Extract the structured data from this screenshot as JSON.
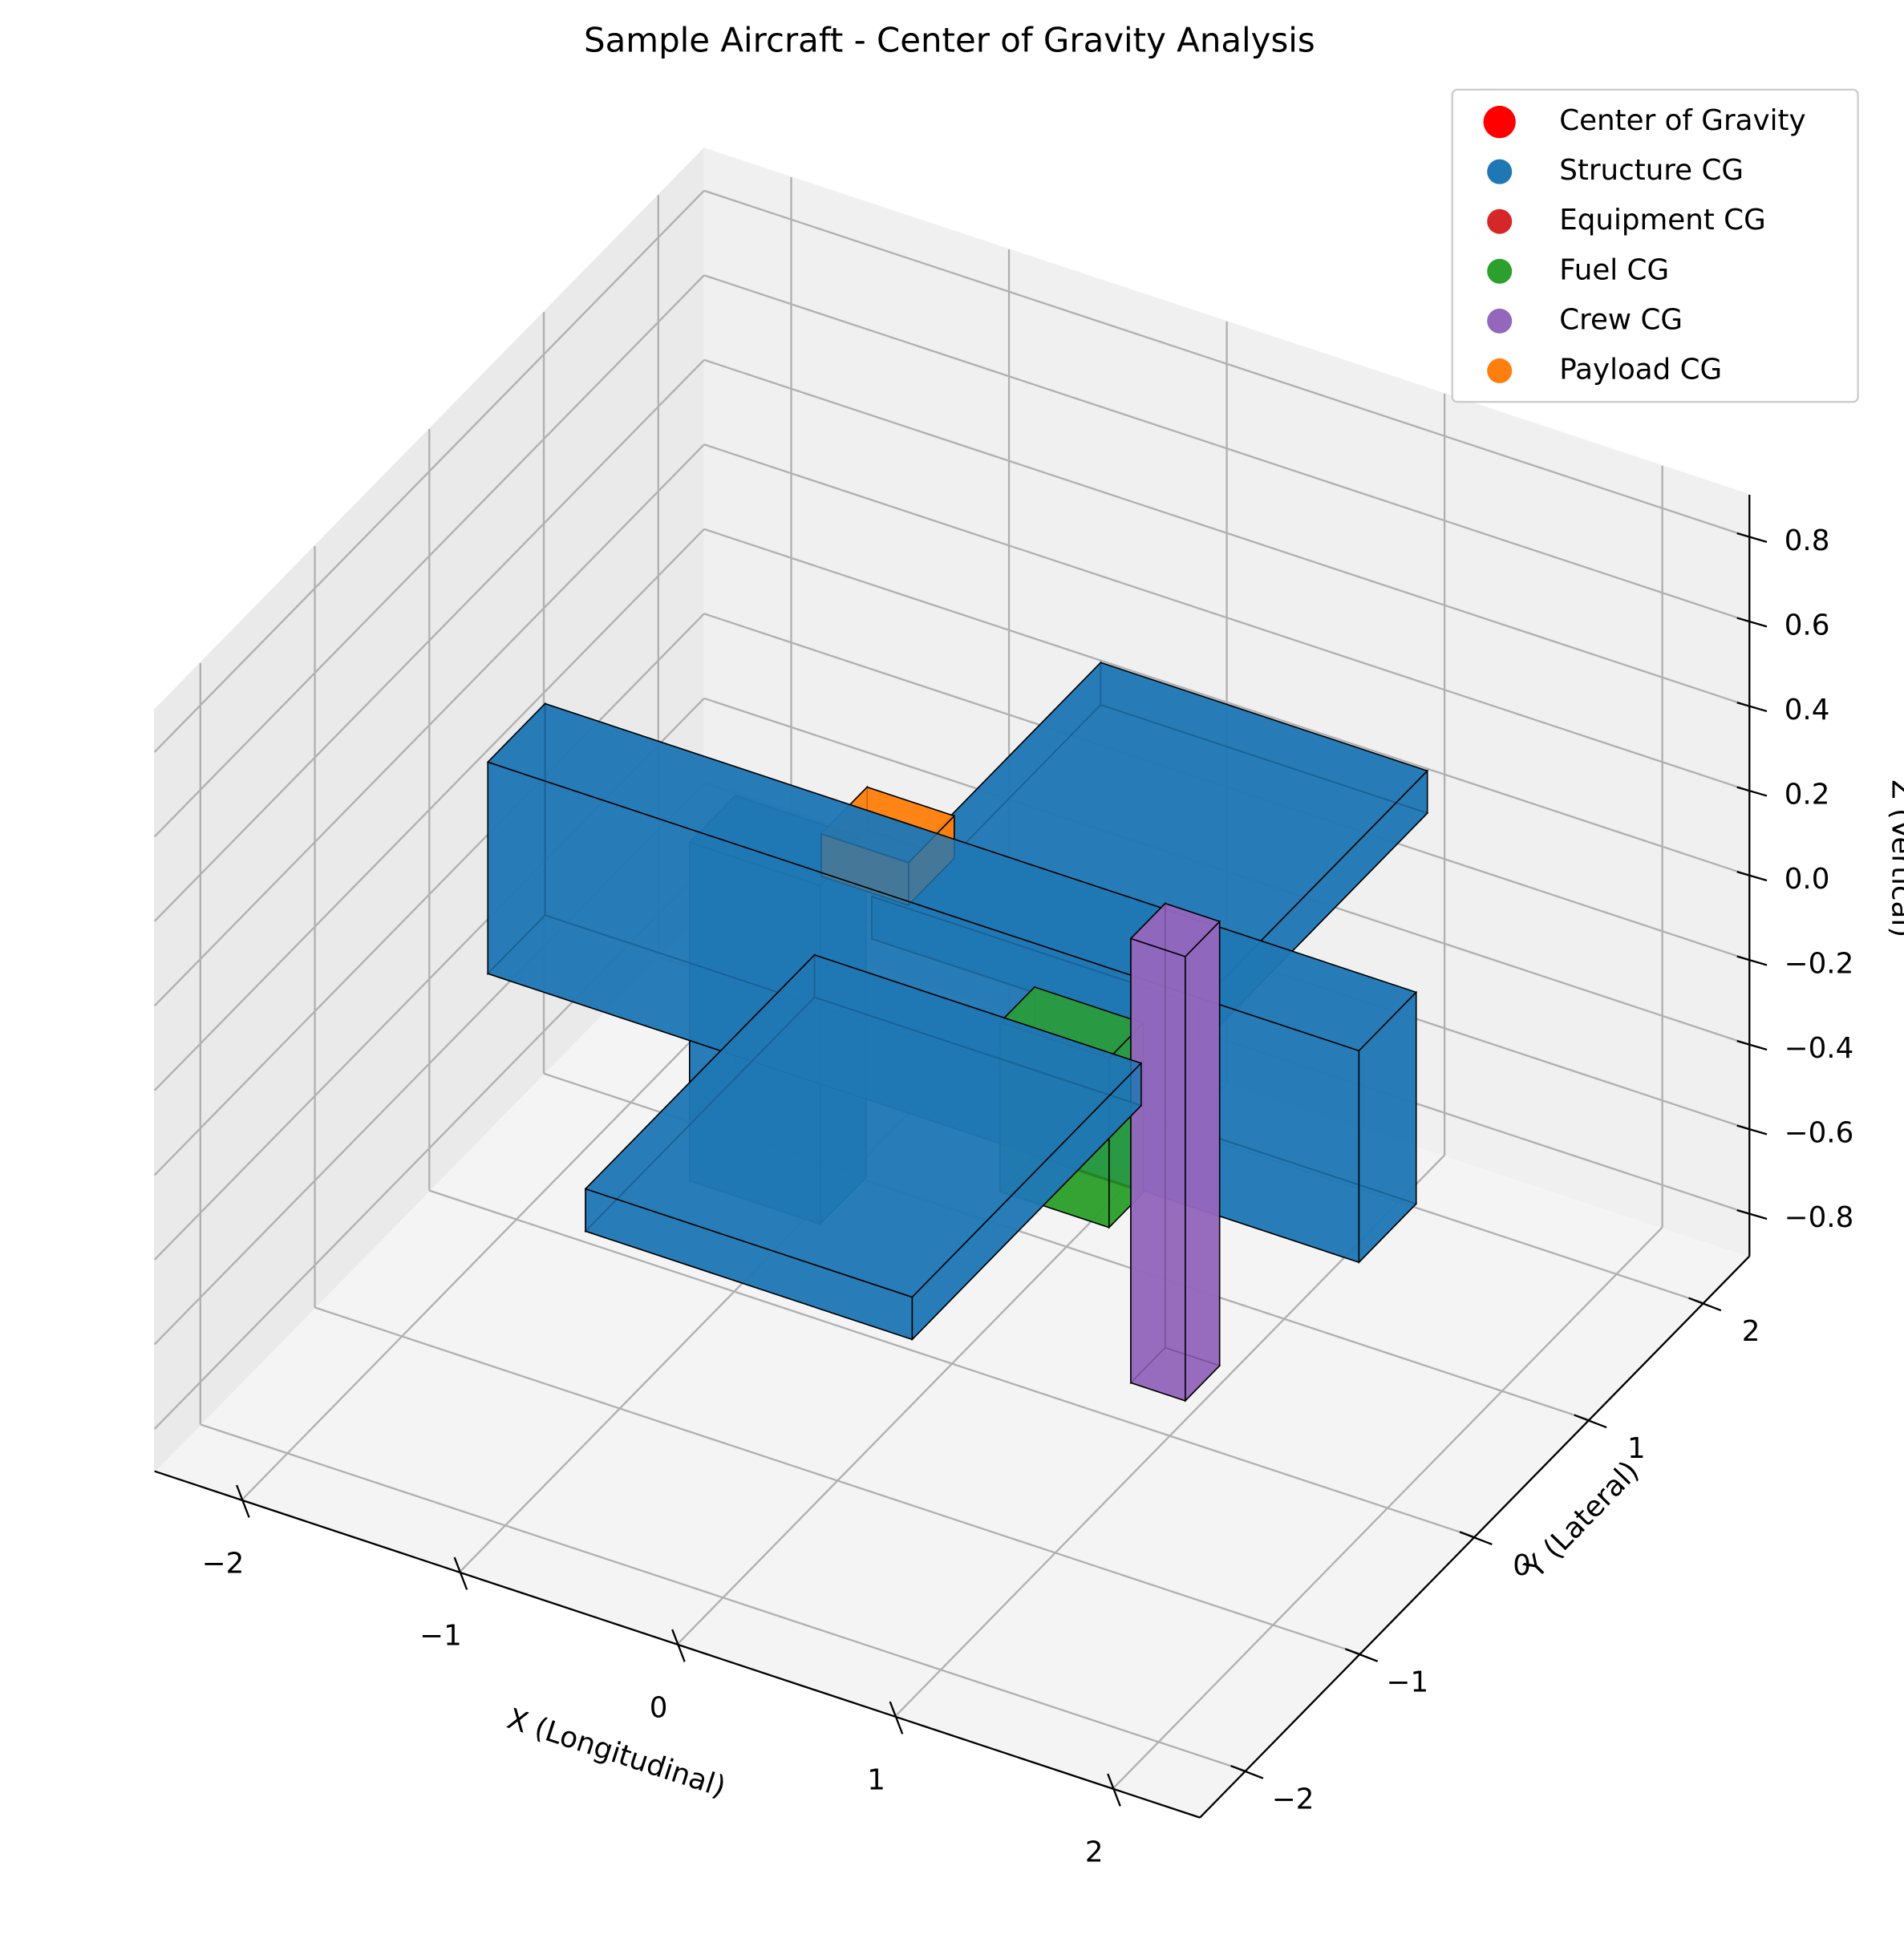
{
  "chart_data": {
    "type": "box3d",
    "title": "Sample Aircraft - Center of Gravity Analysis",
    "x_label": "X (Longitudinal)",
    "y_label": "Y (Lateral)",
    "z_label": "Z (Vertical)",
    "xlim": [
      -2.4,
      2.4
    ],
    "ylim": [
      -2.4,
      2.4
    ],
    "zlim": [
      -0.9,
      0.9
    ],
    "xticks": [
      {
        "value": -2,
        "label": "−2"
      },
      {
        "value": -1,
        "label": "−1"
      },
      0,
      1,
      2
    ],
    "yticks": [
      {
        "value": -2,
        "label": "−2"
      },
      {
        "value": -1,
        "label": "−1"
      },
      0,
      1,
      2
    ],
    "zticks": [
      {
        "value": -0.8,
        "label": "−0.8"
      },
      {
        "value": -0.6,
        "label": "−0.6"
      },
      {
        "value": -0.4,
        "label": "−0.4"
      },
      {
        "value": -0.2,
        "label": "−0.2"
      },
      {
        "value": 0,
        "label": "0.0"
      },
      0.2,
      0.4,
      0.6,
      0.8
    ],
    "grid": true,
    "legend_position": "upper right",
    "legend": [
      {
        "name": "Center of Gravity",
        "color": "#ff0000"
      },
      {
        "name": "Structure CG",
        "color": "#1f77b4"
      },
      {
        "name": "Equipment CG",
        "color": "#d62728"
      },
      {
        "name": "Fuel CG",
        "color": "#2ca02c"
      },
      {
        "name": "Crew CG",
        "color": "#9467bd"
      },
      {
        "name": "Payload CG",
        "color": "#ff7f0e"
      }
    ],
    "boxes": [
      {
        "origin": [
          -0.5,
          0.25,
          -0.05
        ],
        "size": [
          1.5,
          2,
          0.1
        ],
        "color": "#1f77b4"
      },
      {
        "origin": [
          -0.6,
          0,
          0.15
        ],
        "size": [
          0.4,
          0.4,
          0.1
        ],
        "color": "#ff7f0e"
      },
      {
        "origin": [
          -1.1,
          -0.2,
          -0.6
        ],
        "size": [
          0.6,
          0.4,
          0.8
        ],
        "color": "#1f77b4"
      },
      {
        "origin": [
          0.3,
          -0.15,
          -0.4
        ],
        "size": [
          0.5,
          0.3,
          0.4
        ],
        "color": "#2ca02c"
      },
      {
        "origin": [
          -2,
          -0.25,
          -0.25
        ],
        "size": [
          4,
          0.5,
          0.5
        ],
        "color": "#1f77b4"
      },
      {
        "origin": [
          0.9,
          -0.15,
          -0.75
        ],
        "size": [
          0.25,
          0.3,
          1.05
        ],
        "color": "#9467bd"
      },
      {
        "origin": [
          -0.5,
          -2.25,
          -0.05
        ],
        "size": [
          1.5,
          2,
          0.1
        ],
        "color": "#1f77b4"
      }
    ]
  }
}
